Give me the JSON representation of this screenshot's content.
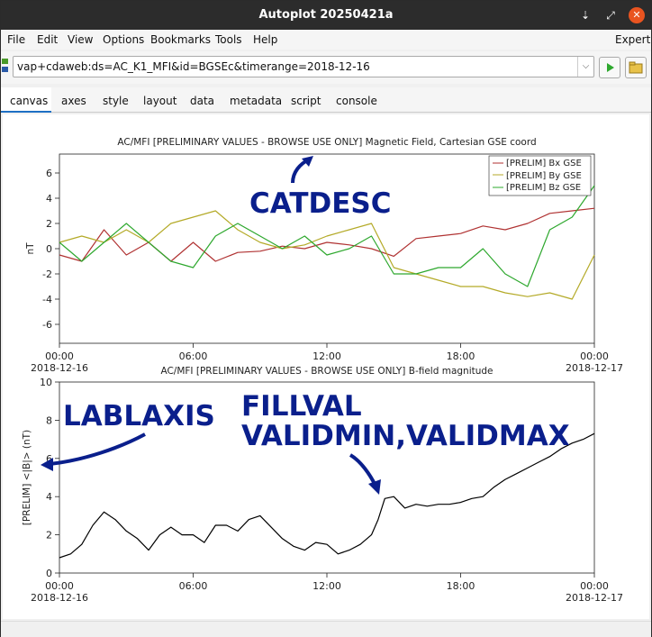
{
  "window": {
    "title": "Autoplot 20250421a"
  },
  "menu": {
    "items": [
      "File",
      "Edit",
      "View",
      "Options",
      "Bookmarks",
      "Tools",
      "Help"
    ],
    "expert": "Expert"
  },
  "address": {
    "value": "vap+cdaweb:ds=AC_K1_MFI&id=BGSEc&timerange=2018-12-16"
  },
  "tabs": [
    "canvas",
    "axes",
    "style",
    "layout",
    "data",
    "metadata",
    "script",
    "console"
  ],
  "colors": {
    "bx": "#b03232",
    "by": "#b4aa28",
    "bz": "#2ea82e",
    "bmag": "#000000",
    "annotation": "#0a1f8c",
    "active_tab": "#1e6fc4"
  },
  "annotations": {
    "catdesc": "CATDESC",
    "lablaxis": "LABLAXIS",
    "fill_line1": "FILLVAL",
    "fill_line2": "VALIDMIN,VALIDMAX"
  },
  "chart_data": [
    {
      "type": "line",
      "title": "AC/MFI  [PRELIMINARY VALUES - BROWSE USE ONLY] Magnetic Field, Cartesian GSE coord",
      "ylabel": "nT",
      "xlabel": "",
      "xlim": [
        "2018-12-16 00:00",
        "2018-12-17 00:00"
      ],
      "ylim": [
        -7.5,
        7.5
      ],
      "yticks": [
        -6,
        -4,
        -2,
        0,
        2,
        4,
        6
      ],
      "xticks": [
        "00:00",
        "06:00",
        "12:00",
        "18:00",
        "00:00"
      ],
      "xticks_date": [
        "2018-12-16",
        "",
        "",
        "",
        "2018-12-17"
      ],
      "legend_position": "top-right",
      "series": [
        {
          "name": "[PRELIM] Bx GSE",
          "x": [
            0,
            1,
            2,
            3,
            4,
            5,
            6,
            7,
            8,
            9,
            10,
            11,
            12,
            13,
            14,
            15,
            16,
            17,
            18,
            19,
            20,
            21,
            22,
            23,
            24
          ],
          "y": [
            -0.5,
            -1,
            1.5,
            -0.5,
            0.5,
            -1,
            0.5,
            -1,
            -0.3,
            -0.2,
            0.2,
            0,
            0.5,
            0.3,
            0,
            -0.6,
            0.8,
            1,
            1.2,
            1.8,
            1.5,
            2,
            2.8,
            3,
            3.2
          ]
        },
        {
          "name": "[PRELIM] By GSE",
          "x": [
            0,
            1,
            2,
            3,
            4,
            5,
            6,
            7,
            8,
            9,
            10,
            11,
            12,
            13,
            14,
            15,
            16,
            17,
            18,
            19,
            20,
            21,
            22,
            23,
            24
          ],
          "y": [
            0.5,
            1,
            0.5,
            1.5,
            0.5,
            2,
            2.5,
            3,
            1.5,
            0.5,
            0,
            0.3,
            1,
            1.5,
            2,
            -1.5,
            -2,
            -2.5,
            -3,
            -3,
            -3.5,
            -3.8,
            -3.5,
            -4,
            -0.5
          ]
        },
        {
          "name": "[PRELIM] Bz GSE",
          "x": [
            0,
            1,
            2,
            3,
            4,
            5,
            6,
            7,
            8,
            9,
            10,
            11,
            12,
            13,
            14,
            15,
            16,
            17,
            18,
            19,
            20,
            21,
            22,
            23,
            24
          ],
          "y": [
            0.5,
            -1,
            0.5,
            2,
            0.5,
            -1,
            -1.5,
            1,
            2,
            1,
            0,
            1,
            -0.5,
            0,
            1,
            -2,
            -2,
            -1.5,
            -1.5,
            0,
            -2,
            -3,
            1.5,
            2.5,
            5
          ]
        }
      ]
    },
    {
      "type": "line",
      "title": "AC/MFI  [PRELIMINARY VALUES - BROWSE USE ONLY] B-field magnitude",
      "ylabel": "[PRELIM] <|B|> (nT)",
      "xlabel": "",
      "xlim": [
        "2018-12-16 00:00",
        "2018-12-17 00:00"
      ],
      "ylim": [
        0,
        10
      ],
      "yticks": [
        0,
        2,
        4,
        6,
        8,
        10
      ],
      "xticks": [
        "00:00",
        "06:00",
        "12:00",
        "18:00",
        "00:00"
      ],
      "xticks_date": [
        "2018-12-16",
        "",
        "",
        "",
        "2018-12-17"
      ],
      "series": [
        {
          "name": "",
          "x": [
            0,
            0.5,
            1,
            1.5,
            2,
            2.5,
            3,
            3.5,
            4,
            4.5,
            5,
            5.5,
            6,
            6.5,
            7,
            7.5,
            8,
            8.5,
            9,
            9.5,
            10,
            10.5,
            11,
            11.5,
            12,
            12.5,
            13,
            13.5,
            14,
            14.3,
            14.6,
            15,
            15.5,
            16,
            16.5,
            17,
            17.5,
            18,
            18.5,
            19,
            19.5,
            20,
            20.5,
            21,
            21.5,
            22,
            22.5,
            23,
            23.5,
            24
          ],
          "y": [
            0.8,
            1,
            1.5,
            2.5,
            3.2,
            2.8,
            2.2,
            1.8,
            1.2,
            2,
            2.4,
            2,
            2,
            1.6,
            2.5,
            2.5,
            2.2,
            2.8,
            3,
            2.4,
            1.8,
            1.4,
            1.2,
            1.6,
            1.5,
            1,
            1.2,
            1.5,
            2,
            2.8,
            3.9,
            4,
            3.4,
            3.6,
            3.5,
            3.6,
            3.6,
            3.7,
            3.9,
            4,
            4.5,
            4.9,
            5.2,
            5.5,
            5.8,
            6.1,
            6.5,
            6.8,
            7,
            7.3
          ]
        }
      ]
    }
  ]
}
